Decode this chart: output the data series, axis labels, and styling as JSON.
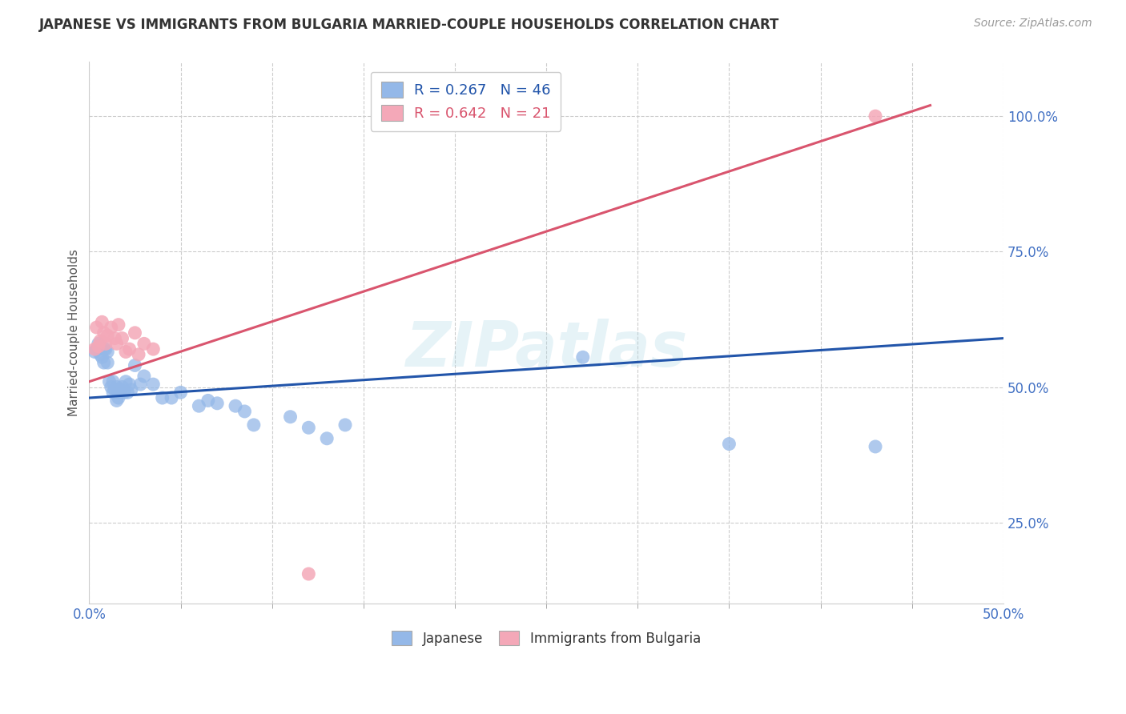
{
  "title": "JAPANESE VS IMMIGRANTS FROM BULGARIA MARRIED-COUPLE HOUSEHOLDS CORRELATION CHART",
  "source": "Source: ZipAtlas.com",
  "ylabel": "Married-couple Households",
  "xlabel": "",
  "xlim": [
    0.0,
    0.5
  ],
  "ylim": [
    0.1,
    1.1
  ],
  "ytick_positions": [
    0.25,
    0.5,
    0.75,
    1.0
  ],
  "ytick_labels": [
    "25.0%",
    "50.0%",
    "75.0%",
    "100.0%"
  ],
  "xtick_positions": [
    0.0,
    0.5
  ],
  "xtick_labels": [
    "0.0%",
    "50.0%"
  ],
  "watermark": "ZIPatlas",
  "legend_R_blue": "0.267",
  "legend_N_blue": "46",
  "legend_R_pink": "0.642",
  "legend_N_pink": "21",
  "blue_color": "#94b8e8",
  "pink_color": "#f4a8b8",
  "blue_line_color": "#2255aa",
  "pink_line_color": "#d9556e",
  "blue_scatter_x": [
    0.003,
    0.004,
    0.005,
    0.006,
    0.007,
    0.008,
    0.008,
    0.009,
    0.01,
    0.01,
    0.011,
    0.012,
    0.013,
    0.013,
    0.014,
    0.015,
    0.015,
    0.016,
    0.016,
    0.017,
    0.018,
    0.019,
    0.02,
    0.021,
    0.022,
    0.023,
    0.025,
    0.028,
    0.03,
    0.035,
    0.04,
    0.045,
    0.05,
    0.06,
    0.065,
    0.07,
    0.08,
    0.085,
    0.09,
    0.11,
    0.12,
    0.13,
    0.14,
    0.27,
    0.35,
    0.43
  ],
  "blue_scatter_y": [
    0.565,
    0.57,
    0.58,
    0.56,
    0.555,
    0.57,
    0.545,
    0.57,
    0.565,
    0.545,
    0.51,
    0.5,
    0.51,
    0.49,
    0.495,
    0.5,
    0.475,
    0.49,
    0.48,
    0.495,
    0.5,
    0.49,
    0.51,
    0.49,
    0.505,
    0.495,
    0.54,
    0.505,
    0.52,
    0.505,
    0.48,
    0.48,
    0.49,
    0.465,
    0.475,
    0.47,
    0.465,
    0.455,
    0.43,
    0.445,
    0.425,
    0.405,
    0.43,
    0.555,
    0.395,
    0.39
  ],
  "pink_scatter_x": [
    0.003,
    0.004,
    0.005,
    0.006,
    0.007,
    0.008,
    0.009,
    0.01,
    0.012,
    0.014,
    0.015,
    0.016,
    0.018,
    0.02,
    0.022,
    0.025,
    0.027,
    0.03,
    0.035,
    0.12,
    0.43
  ],
  "pink_scatter_y": [
    0.57,
    0.61,
    0.575,
    0.585,
    0.62,
    0.6,
    0.58,
    0.595,
    0.61,
    0.59,
    0.58,
    0.615,
    0.59,
    0.565,
    0.57,
    0.6,
    0.56,
    0.58,
    0.57,
    0.155,
    1.0
  ],
  "blue_trend_x": [
    0.0,
    0.5
  ],
  "blue_trend_y": [
    0.48,
    0.59
  ],
  "pink_trend_x": [
    0.0,
    0.46
  ],
  "pink_trend_y": [
    0.51,
    1.02
  ],
  "background_color": "#ffffff",
  "grid_color": "#cccccc"
}
